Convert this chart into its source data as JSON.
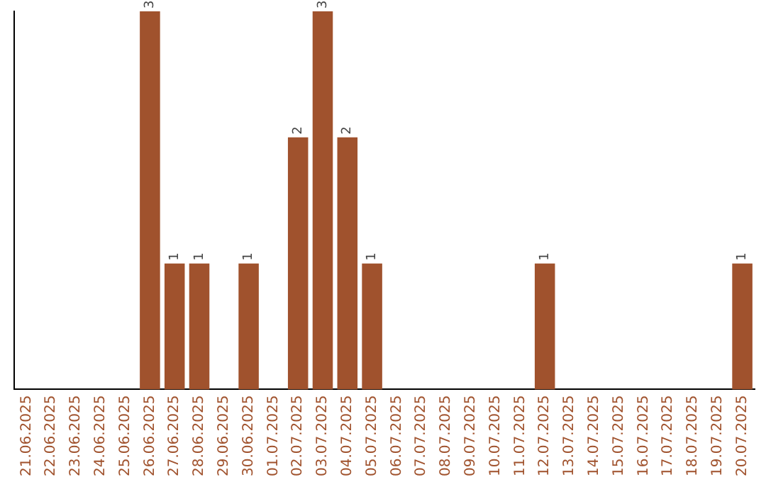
{
  "chart_data": {
    "type": "bar",
    "categories": [
      "21.06.2025",
      "22.06.2025",
      "23.06.2025",
      "24.06.2025",
      "25.06.2025",
      "26.06.2025",
      "27.06.2025",
      "28.06.2025",
      "29.06.2025",
      "30.06.2025",
      "01.07.2025",
      "02.07.2025",
      "03.07.2025",
      "04.07.2025",
      "05.07.2025",
      "06.07.2025",
      "07.07.2025",
      "08.07.2025",
      "09.07.2025",
      "10.07.2025",
      "11.07.2025",
      "12.07.2025",
      "13.07.2025",
      "14.07.2025",
      "15.07.2025",
      "16.07.2025",
      "17.07.2025",
      "18.07.2025",
      "19.07.2025",
      "20.07.2025"
    ],
    "values": [
      null,
      null,
      null,
      null,
      null,
      3,
      1,
      1,
      null,
      1,
      null,
      2,
      3,
      2,
      1,
      null,
      null,
      null,
      null,
      null,
      null,
      1,
      null,
      null,
      null,
      null,
      null,
      null,
      null,
      1
    ],
    "color": "#a0522d",
    "data_labels": true,
    "grid": false,
    "legend": false
  }
}
